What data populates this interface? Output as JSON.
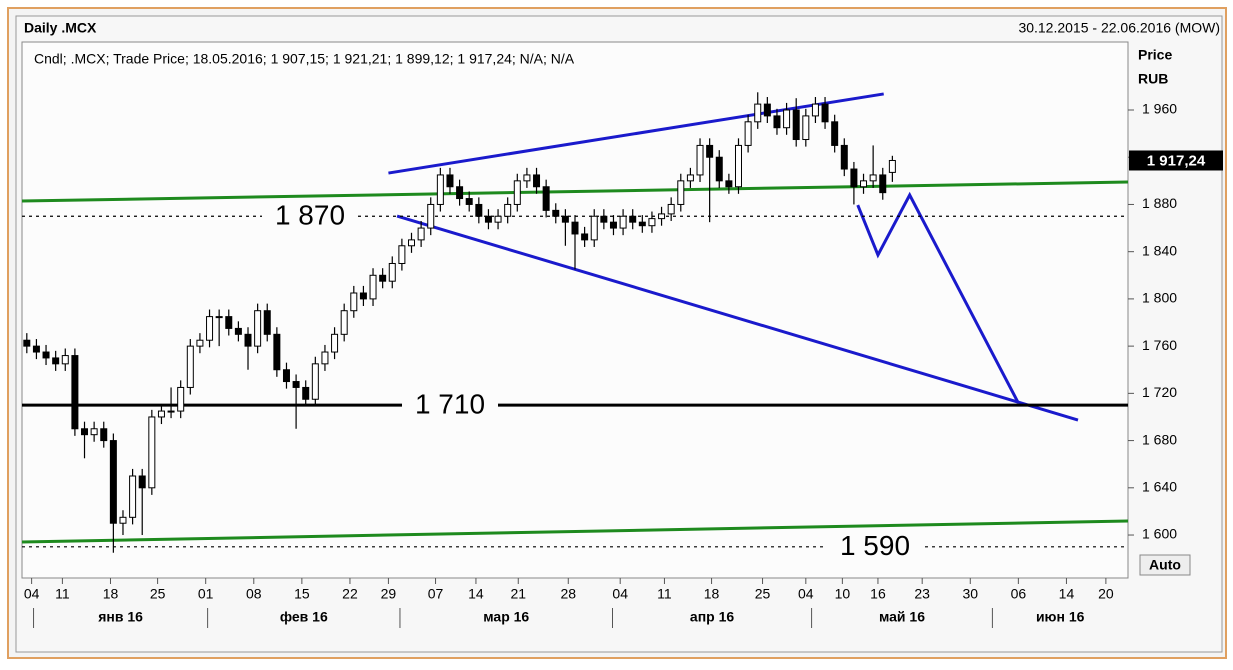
{
  "chart_data": {
    "type": "candlestick",
    "title": "Daily .MCX",
    "date_range": "30.12.2015 - 22.06.2016 (MOW)",
    "info": "Cndl; .MCX; Trade Price; 18.05.2016; 1 907,15; 1 921,21; 1 899,12; 1 917,24; N/A; N/A",
    "y_axis_label": [
      "Price",
      "RUB"
    ],
    "scale_button": "Auto",
    "categories": [
      null,
      null,
      null,
      null,
      null,
      null,
      null,
      null,
      null,
      null,
      null,
      null,
      null,
      null,
      null,
      null,
      null,
      null,
      null,
      null,
      null,
      null,
      null,
      null,
      null,
      null,
      null,
      null,
      null,
      null,
      null,
      null,
      null,
      null,
      null,
      null,
      null,
      null,
      null,
      null,
      null,
      null,
      null,
      null,
      null,
      null,
      null,
      null,
      null,
      null,
      null,
      null,
      null,
      null,
      null,
      null,
      null,
      null,
      null,
      null,
      null,
      null,
      null,
      null,
      null,
      null,
      null,
      null,
      null,
      null,
      null,
      null,
      null,
      null,
      null,
      null,
      null,
      null,
      null,
      null,
      null,
      null,
      null,
      null,
      null,
      null,
      null,
      null,
      null,
      null,
      null
    ],
    "open": [
      1765,
      1760,
      1755,
      1750,
      1745,
      1752,
      1690,
      1685,
      1690,
      1680,
      1610,
      1615,
      1650,
      1640,
      1700,
      1705,
      1705,
      1725,
      1760,
      1765,
      1785,
      1785,
      1775,
      1770,
      1760,
      1790,
      1770,
      1740,
      1730,
      1725,
      1715,
      1745,
      1755,
      1770,
      1790,
      1805,
      1800,
      1820,
      1815,
      1830,
      1845,
      1850,
      1860,
      1880,
      1905,
      1895,
      1885,
      1880,
      1870,
      1865,
      1870,
      1880,
      1900,
      1905,
      1895,
      1875,
      1870,
      1865,
      1855,
      1850,
      1870,
      1865,
      1860,
      1870,
      1865,
      1862,
      1868,
      1872,
      1880,
      1900,
      1905,
      1930,
      1920,
      1900,
      1895,
      1930,
      1950,
      1965,
      1955,
      1945,
      1960,
      1935,
      1955,
      1965,
      1950,
      1930,
      1910,
      1895,
      1900,
      1905,
      1907.15
    ],
    "high": [
      1771,
      1766,
      1761,
      1756,
      1758,
      1758,
      1696,
      1696,
      1696,
      1686,
      1621,
      1656,
      1656,
      1706,
      1711,
      1725,
      1731,
      1766,
      1771,
      1791,
      1791,
      1791,
      1781,
      1776,
      1796,
      1796,
      1776,
      1746,
      1736,
      1731,
      1751,
      1761,
      1776,
      1796,
      1811,
      1811,
      1826,
      1826,
      1836,
      1851,
      1856,
      1866,
      1886,
      1911,
      1911,
      1901,
      1891,
      1886,
      1876,
      1876,
      1886,
      1906,
      1911,
      1911,
      1901,
      1881,
      1876,
      1871,
      1861,
      1876,
      1876,
      1871,
      1876,
      1876,
      1871,
      1874,
      1878,
      1886,
      1906,
      1911,
      1936,
      1936,
      1926,
      1906,
      1936,
      1956,
      1975,
      1971,
      1961,
      1966,
      1970,
      1961,
      1971,
      1971,
      1956,
      1936,
      1916,
      1906,
      1930,
      1911,
      1921.21
    ],
    "low": [
      1754,
      1749,
      1744,
      1739,
      1739,
      1684,
      1665,
      1679,
      1674,
      1585,
      1600,
      1609,
      1600,
      1634,
      1694,
      1699,
      1699,
      1719,
      1754,
      1759,
      1760,
      1769,
      1764,
      1740,
      1754,
      1764,
      1734,
      1724,
      1690,
      1709,
      1709,
      1739,
      1749,
      1764,
      1784,
      1794,
      1794,
      1809,
      1809,
      1824,
      1839,
      1844,
      1854,
      1874,
      1889,
      1879,
      1874,
      1864,
      1859,
      1859,
      1864,
      1874,
      1894,
      1889,
      1869,
      1864,
      1845,
      1825,
      1844,
      1844,
      1859,
      1854,
      1854,
      1859,
      1856,
      1856,
      1862,
      1866,
      1874,
      1894,
      1899,
      1865,
      1894,
      1889,
      1889,
      1924,
      1944,
      1949,
      1939,
      1939,
      1929,
      1929,
      1949,
      1944,
      1924,
      1904,
      1880,
      1889,
      1894,
      1884,
      1899.12
    ],
    "close": [
      1760,
      1755,
      1750,
      1745,
      1752,
      1690,
      1685,
      1690,
      1680,
      1610,
      1615,
      1650,
      1640,
      1700,
      1705,
      1705,
      1725,
      1760,
      1765,
      1785,
      1785,
      1775,
      1770,
      1760,
      1790,
      1770,
      1740,
      1730,
      1725,
      1715,
      1745,
      1755,
      1770,
      1790,
      1805,
      1800,
      1820,
      1815,
      1830,
      1845,
      1850,
      1860,
      1880,
      1905,
      1895,
      1885,
      1880,
      1870,
      1865,
      1870,
      1880,
      1900,
      1905,
      1895,
      1875,
      1870,
      1865,
      1855,
      1850,
      1870,
      1865,
      1860,
      1870,
      1865,
      1862,
      1868,
      1872,
      1880,
      1900,
      1905,
      1930,
      1920,
      1900,
      1895,
      1930,
      1950,
      1965,
      1955,
      1945,
      1960,
      1935,
      1955,
      1965,
      1950,
      1930,
      1910,
      1895,
      1900,
      1905,
      1890,
      1917.24
    ],
    "up_color": "#ffffff",
    "down_color": "#000000",
    "wick_color": "#000000",
    "last_price": {
      "value": 1917.24,
      "label": "1 917,24"
    },
    "xlim": [
      -0.5,
      114.5
    ],
    "xticks": [
      {
        "value": 0.5,
        "label": "04"
      },
      {
        "value": 3.7,
        "label": "11"
      },
      {
        "value": 8.7,
        "label": "18"
      },
      {
        "value": 13.6,
        "label": "25"
      },
      {
        "value": 18.6,
        "label": "01"
      },
      {
        "value": 23.6,
        "label": "08"
      },
      {
        "value": 28.6,
        "label": "15"
      },
      {
        "value": 33.6,
        "label": "22"
      },
      {
        "value": 37.6,
        "label": "29"
      },
      {
        "value": 42.5,
        "label": "07"
      },
      {
        "value": 46.7,
        "label": "14"
      },
      {
        "value": 51.1,
        "label": "21"
      },
      {
        "value": 56.3,
        "label": "28"
      },
      {
        "value": 61.7,
        "label": "04"
      },
      {
        "value": 66.3,
        "label": "11"
      },
      {
        "value": 71.2,
        "label": "18"
      },
      {
        "value": 76.5,
        "label": "25"
      },
      {
        "value": 81.0,
        "label": "04"
      },
      {
        "value": 84.8,
        "label": "10"
      },
      {
        "value": 88.5,
        "label": "16"
      },
      {
        "value": 93.1,
        "label": "23"
      },
      {
        "value": 98.1,
        "label": "30"
      },
      {
        "value": 103.1,
        "label": "06"
      },
      {
        "value": 108.1,
        "label": "14"
      },
      {
        "value": 112.2,
        "label": "20"
      }
    ],
    "x_periods": [
      {
        "value": 0.7,
        "label": "янв 16"
      },
      {
        "value": 18.8,
        "label": "фев 16"
      },
      {
        "value": 38.8,
        "label": "мар 16"
      },
      {
        "value": 60.9,
        "label": "апр 16"
      },
      {
        "value": 81.6,
        "label": "май 16"
      },
      {
        "value": 100.4,
        "label": "июн 16"
      }
    ],
    "ylim": [
      1563.6,
      2017.6
    ],
    "yticks": [
      {
        "value": 1600,
        "label": "1 600"
      },
      {
        "value": 1640,
        "label": "1 640"
      },
      {
        "value": 1680,
        "label": "1 680"
      },
      {
        "value": 1720,
        "label": "1 720"
      },
      {
        "value": 1760,
        "label": "1 760"
      },
      {
        "value": 1800,
        "label": "1 800"
      },
      {
        "value": 1840,
        "label": "1 840"
      },
      {
        "value": 1880,
        "label": "1 880"
      },
      {
        "value": 1920,
        "label": "1 920"
      },
      {
        "value": 1960,
        "label": "1 960"
      }
    ],
    "levels": [
      {
        "value": 1870,
        "label": "1 870",
        "style": "dotted",
        "color": "#000000"
      },
      {
        "value": 1710,
        "label": "1 710",
        "style": "solid",
        "color": "#000000"
      },
      {
        "value": 1590,
        "label": "1 590",
        "style": "dotted",
        "color": "#000000"
      }
    ],
    "trendlines": [
      {
        "color": "#1a1acc",
        "points": [
          [
            37.6,
            1906.6
          ],
          [
            89.1,
            1973.6
          ]
        ]
      },
      {
        "color": "#1a1acc",
        "points": [
          [
            38.5,
            1870.2
          ],
          [
            109.3,
            1697.4
          ]
        ]
      },
      {
        "color": "#1a1acc",
        "points": [
          [
            86.4,
            1879.5
          ],
          [
            88.5,
            1837.2
          ],
          [
            91.8,
            1888
          ],
          [
            103.1,
            1711.8
          ]
        ]
      },
      {
        "color": "#1e8a1e",
        "points": [
          [
            -0.5,
            1882.9
          ],
          [
            114.5,
            1899
          ]
        ]
      },
      {
        "color": "#1e8a1e",
        "points": [
          [
            -0.5,
            1594.1
          ],
          [
            114.5,
            1611.9
          ]
        ]
      }
    ]
  }
}
